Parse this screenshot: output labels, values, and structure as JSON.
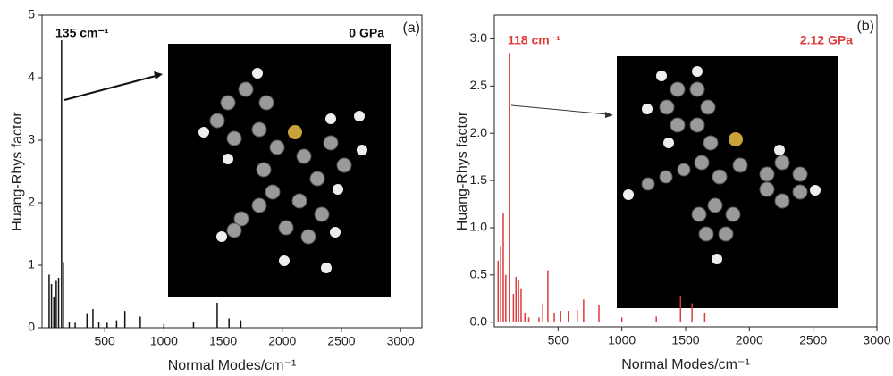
{
  "chart_data": [
    {
      "type": "bar",
      "color": "#111111",
      "annotations": [
        "135 cm⁻¹",
        "0 GPa",
        "(a)"
      ],
      "annotation_color": "#111111",
      "xlabel": "Normal Modes/cm⁻¹",
      "ylabel": "Huang-Rhys factor",
      "x": [
        30,
        50,
        70,
        90,
        110,
        135,
        150,
        200,
        250,
        350,
        400,
        450,
        520,
        600,
        670,
        800,
        1000,
        1250,
        1450,
        1550,
        1650
      ],
      "values": [
        0.85,
        0.7,
        0.5,
        0.75,
        0.8,
        4.6,
        1.05,
        0.1,
        0.08,
        0.22,
        0.3,
        0.1,
        0.08,
        0.12,
        0.27,
        0.18,
        0.06,
        0.1,
        0.4,
        0.15,
        0.12
      ],
      "xlim": [
        -30,
        3180
      ],
      "xticks": [
        500,
        1000,
        1500,
        2000,
        2500,
        3000
      ],
      "ylim": [
        0,
        5
      ],
      "yticks": [
        0,
        1,
        2,
        3,
        4,
        5
      ]
    },
    {
      "type": "bar",
      "color": "#e03a3a",
      "annotations": [
        "118 cm⁻¹",
        "2.12 GPa",
        "(b)"
      ],
      "annotation_color": "#e03a3a",
      "xlabel": "Normal Modes/cm⁻¹",
      "ylabel": "Huang-Rhys factor",
      "x": [
        30,
        50,
        70,
        90,
        118,
        150,
        170,
        190,
        210,
        240,
        270,
        350,
        380,
        420,
        470,
        520,
        580,
        650,
        700,
        820,
        1000,
        1270,
        1460,
        1550,
        1650
      ],
      "values": [
        0.65,
        0.8,
        1.15,
        0.5,
        2.85,
        0.3,
        0.48,
        0.45,
        0.35,
        0.1,
        0.05,
        0.05,
        0.2,
        0.55,
        0.1,
        0.12,
        0.12,
        0.13,
        0.24,
        0.18,
        0.05,
        0.06,
        0.28,
        0.2,
        0.1
      ],
      "xlim": [
        0,
        3000
      ],
      "xticks": [
        500,
        1000,
        1500,
        2000,
        2500,
        3000
      ],
      "ylim": [
        -0.05,
        3.25
      ],
      "yticks": [
        {
          "value": 0,
          "label": "0.0"
        },
        0.5,
        {
          "value": 1,
          "label": "1.0"
        },
        1.5,
        {
          "value": 2,
          "label": "2.0"
        },
        2.5,
        {
          "value": 3,
          "label": "3.0"
        }
      ]
    }
  ]
}
